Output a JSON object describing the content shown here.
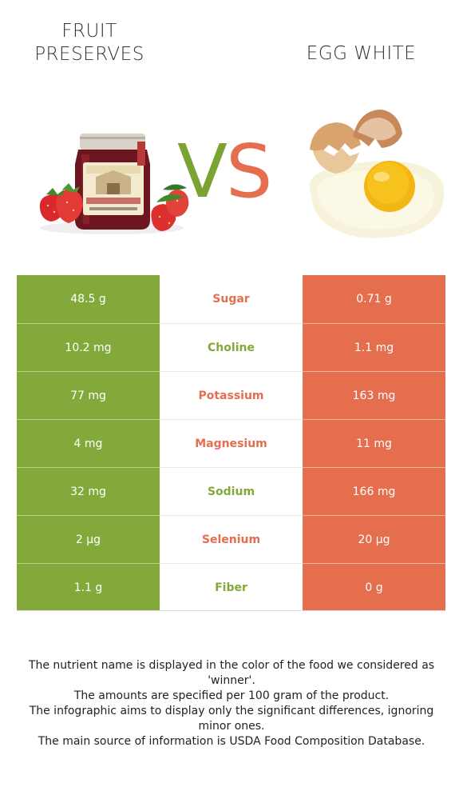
{
  "header": {
    "left_title": "FRUIT\nPRESERVES",
    "right_title": "EGG WHITE",
    "vs_v": "V",
    "vs_s": "S"
  },
  "images": {
    "left": "fruit-preserves-jar-illustration",
    "right": "cracked-egg-illustration"
  },
  "colors": {
    "left_food": "#82a93a",
    "right_food": "#e56e4f"
  },
  "rows": [
    {
      "nutrient": "Sugar",
      "left": "48.5 g",
      "right": "0.71 g",
      "winner": "right"
    },
    {
      "nutrient": "Choline",
      "left": "10.2 mg",
      "right": "1.1 mg",
      "winner": "left"
    },
    {
      "nutrient": "Potassium",
      "left": "77 mg",
      "right": "163 mg",
      "winner": "right"
    },
    {
      "nutrient": "Magnesium",
      "left": "4 mg",
      "right": "11 mg",
      "winner": "right"
    },
    {
      "nutrient": "Sodium",
      "left": "32 mg",
      "right": "166 mg",
      "winner": "left"
    },
    {
      "nutrient": "Selenium",
      "left": "2 µg",
      "right": "20 µg",
      "winner": "right"
    },
    {
      "nutrient": "Fiber",
      "left": "1.1 g",
      "right": "0 g",
      "winner": "left"
    }
  ],
  "footer": [
    "The nutrient name is displayed in the color of the food we considered as 'winner'.",
    "The amounts are specified per 100 gram of the product.",
    "The infographic aims to display only the significant differences, ignoring minor ones.",
    "The main source of information is USDA Food Composition Database."
  ]
}
